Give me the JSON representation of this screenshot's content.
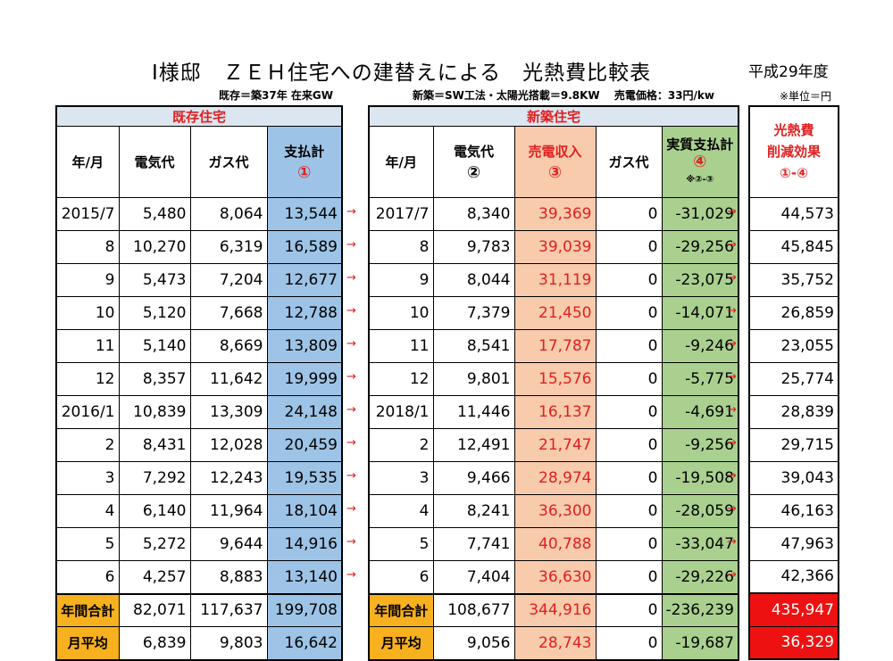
{
  "title": "I様邸　ＺＥＨ住宅への建替えによる　光熱費比較表",
  "year_label": "平成29年度",
  "subtitle_old": "既存＝築37年 在来GW",
  "subtitle_new": "新築＝SW工法・太陽光搭載＝9.8KW　 売電価格：33円/kw",
  "unit_note": "※単位＝円",
  "old": {
    "section": "既存住宅",
    "headers": [
      "年/月",
      "電気代",
      "ガス代",
      "支払計",
      "①"
    ]
  },
  "new": {
    "section": "新築住宅",
    "headers": [
      "年/月",
      "電気代",
      "②",
      "売電収入",
      "③",
      "ガス代",
      "実質支払計",
      "④",
      "※②-③"
    ]
  },
  "effect": {
    "headers": [
      "光熱費",
      "削減効果",
      "①-④"
    ]
  },
  "rows": [
    {
      "old_month": "2015/7",
      "old_elec": "5,480",
      "old_gas": "8,064",
      "old_total": "13,544",
      "new_month": "2017/7",
      "new_elec": "8,340",
      "sell": "39,369",
      "new_gas": "0",
      "net": "-31,029",
      "effect": "44,573"
    },
    {
      "old_month": "8",
      "old_elec": "10,270",
      "old_gas": "6,319",
      "old_total": "16,589",
      "new_month": "8",
      "new_elec": "9,783",
      "sell": "39,039",
      "new_gas": "0",
      "net": "-29,256",
      "effect": "45,845"
    },
    {
      "old_month": "9",
      "old_elec": "5,473",
      "old_gas": "7,204",
      "old_total": "12,677",
      "new_month": "9",
      "new_elec": "8,044",
      "sell": "31,119",
      "new_gas": "0",
      "net": "-23,075",
      "effect": "35,752"
    },
    {
      "old_month": "10",
      "old_elec": "5,120",
      "old_gas": "7,668",
      "old_total": "12,788",
      "new_month": "10",
      "new_elec": "7,379",
      "sell": "21,450",
      "new_gas": "0",
      "net": "-14,071",
      "effect": "26,859"
    },
    {
      "old_month": "11",
      "old_elec": "5,140",
      "old_gas": "8,669",
      "old_total": "13,809",
      "new_month": "11",
      "new_elec": "8,541",
      "sell": "17,787",
      "new_gas": "0",
      "net": "-9,246",
      "effect": "23,055"
    },
    {
      "old_month": "12",
      "old_elec": "8,357",
      "old_gas": "11,642",
      "old_total": "19,999",
      "new_month": "12",
      "new_elec": "9,801",
      "sell": "15,576",
      "new_gas": "0",
      "net": "-5,775",
      "effect": "25,774"
    },
    {
      "old_month": "2016/1",
      "old_elec": "10,839",
      "old_gas": "13,309",
      "old_total": "24,148",
      "new_month": "2018/1",
      "new_elec": "11,446",
      "sell": "16,137",
      "new_gas": "0",
      "net": "-4,691",
      "effect": "28,839"
    },
    {
      "old_month": "2",
      "old_elec": "8,431",
      "old_gas": "12,028",
      "old_total": "20,459",
      "new_month": "2",
      "new_elec": "12,491",
      "sell": "21,747",
      "new_gas": "0",
      "net": "-9,256",
      "effect": "29,715"
    },
    {
      "old_month": "3",
      "old_elec": "7,292",
      "old_gas": "12,243",
      "old_total": "19,535",
      "new_month": "3",
      "new_elec": "9,466",
      "sell": "28,974",
      "new_gas": "0",
      "net": "-19,508",
      "effect": "39,043"
    },
    {
      "old_month": "4",
      "old_elec": "6,140",
      "old_gas": "11,964",
      "old_total": "18,104",
      "new_month": "4",
      "new_elec": "8,241",
      "sell": "36,300",
      "new_gas": "0",
      "net": "-28,059",
      "effect": "46,163"
    },
    {
      "old_month": "5",
      "old_elec": "5,272",
      "old_gas": "9,644",
      "old_total": "14,916",
      "new_month": "5",
      "new_elec": "7,741",
      "sell": "40,788",
      "new_gas": "0",
      "net": "-33,047",
      "effect": "47,963"
    },
    {
      "old_month": "6",
      "old_elec": "4,257",
      "old_gas": "8,883",
      "old_total": "13,140",
      "new_month": "6",
      "new_elec": "7,404",
      "sell": "36,630",
      "new_gas": "0",
      "net": "-29,226",
      "effect": "42,366"
    }
  ],
  "totals": [
    {
      "label": "年間合計",
      "old_elec": "82,071",
      "old_gas": "117,637",
      "old_total": "199,708",
      "new_label": "年間合計",
      "new_elec": "108,677",
      "sell": "344,916",
      "new_gas": "0",
      "net": "-236,239",
      "effect": "435,947"
    },
    {
      "label": "月平均",
      "old_elec": "6,839",
      "old_gas": "9,803",
      "old_total": "16,642",
      "new_label": "月平均",
      "new_elec": "9,056",
      "sell": "28,743",
      "new_gas": "0",
      "net": "-19,687",
      "effect": "36,329"
    }
  ],
  "arrow_glyph": "→",
  "colors": {
    "accent_red": "#e02020",
    "blue": "#9dc3e6",
    "salmon": "#f8cbad",
    "green": "#a9d08e",
    "gold": "#f7b01e",
    "red_bg": "#ee1111"
  }
}
